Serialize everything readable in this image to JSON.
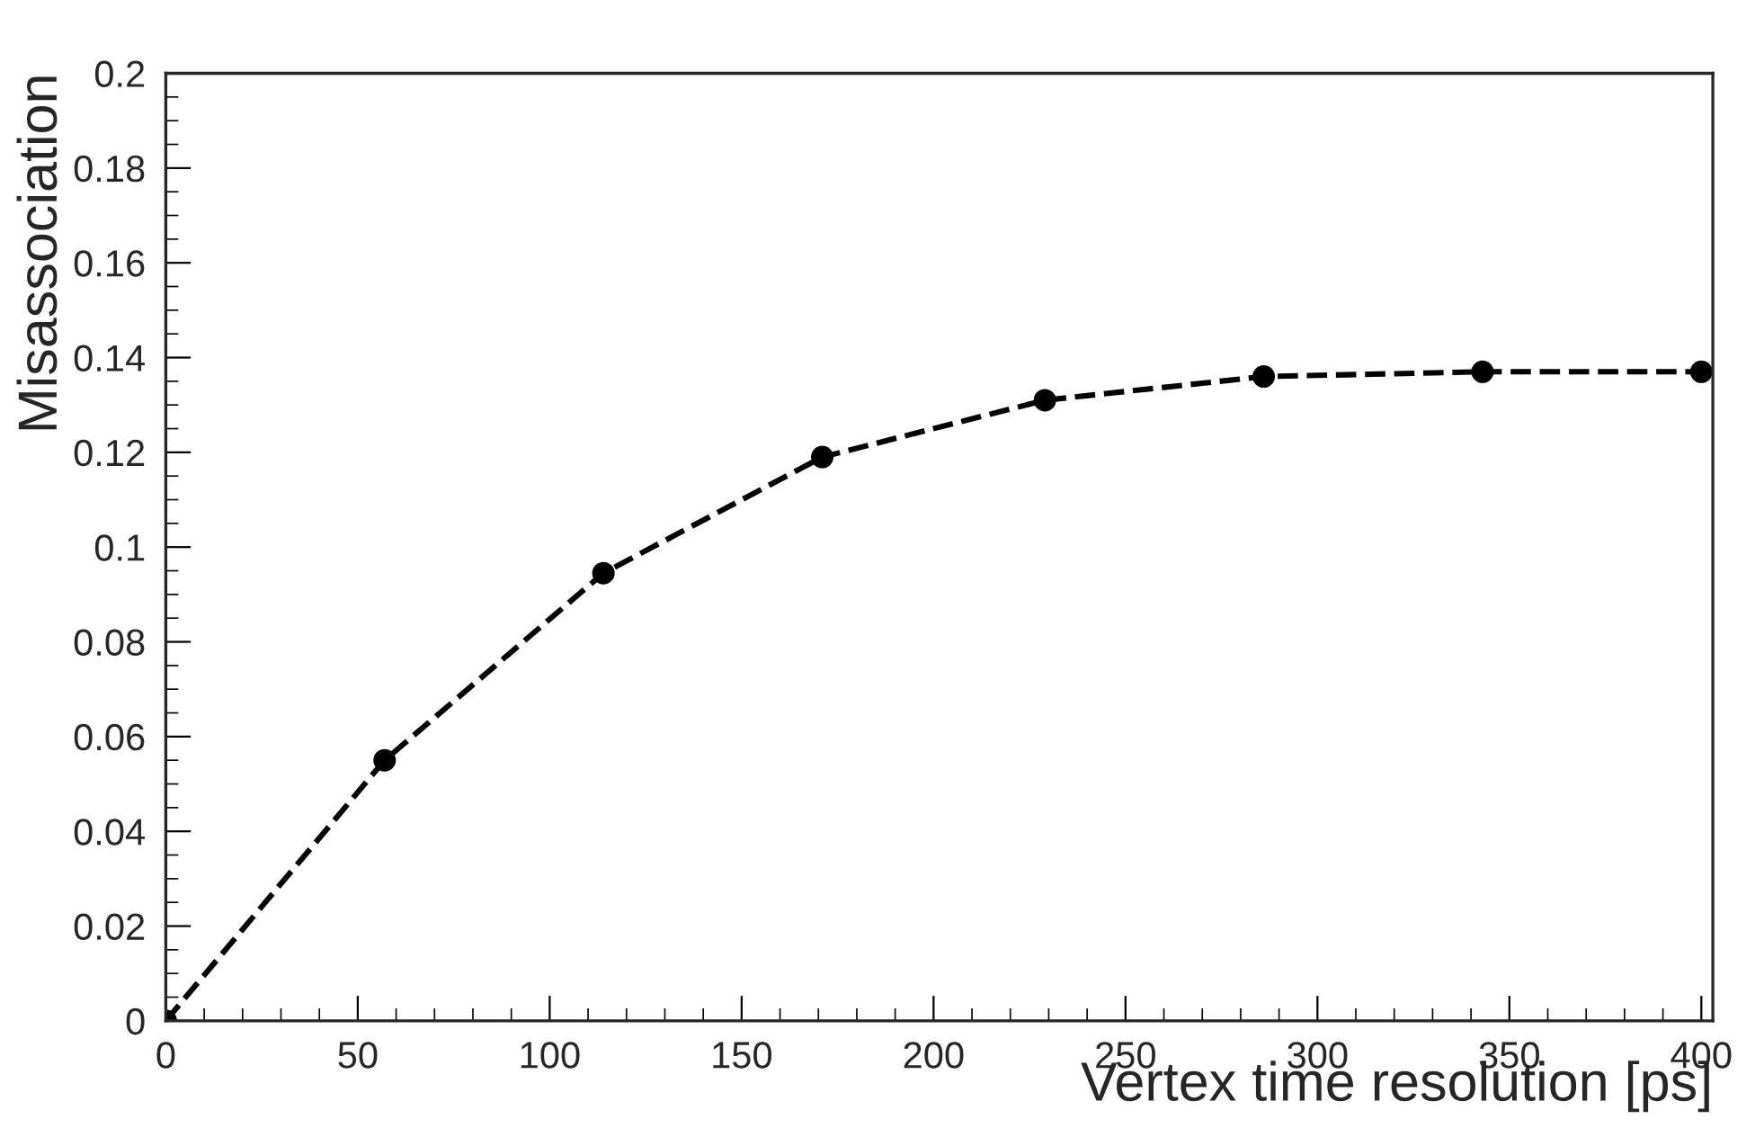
{
  "chart_data": {
    "type": "line",
    "xlabel": "Vertex time resolution [ps]",
    "ylabel": "Misassociation",
    "x": [
      0,
      57,
      114,
      171,
      229,
      286,
      343,
      400
    ],
    "series": [
      {
        "color": "#000000",
        "values": [
          0,
          0.055,
          0.0945,
          0.119,
          0.131,
          0.136,
          0.137,
          0.137
        ]
      }
    ],
    "xlim": [
      0,
      403
    ],
    "xticks": [
      0,
      50,
      100,
      150,
      200,
      250,
      300,
      350,
      400
    ],
    "ylim": [
      0,
      0.2
    ],
    "yticks": [
      0,
      0.02,
      0.04,
      0.06,
      0.08,
      0.1,
      0.12,
      0.14,
      0.16,
      0.18,
      0.2
    ],
    "marker": "circle",
    "line_style": "dashed",
    "grid": false,
    "legend": false
  }
}
